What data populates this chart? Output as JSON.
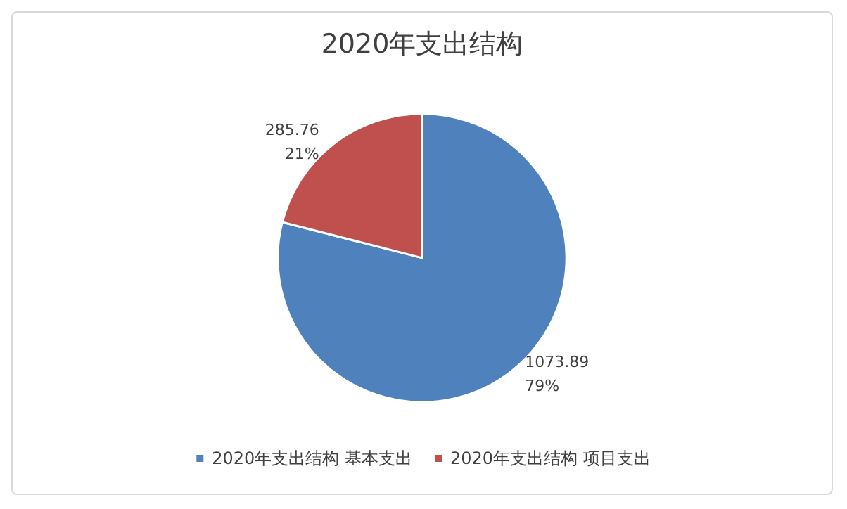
{
  "chart_data": {
    "type": "pie",
    "title": "2020年支出结构",
    "categories": [
      "2020年支出结构 基本支出",
      "2020年支出结构 项目支出"
    ],
    "values": [
      1073.89,
      285.76
    ],
    "colors": [
      "#4f81bd",
      "#c0504d"
    ],
    "value_labels": [
      "1073.89\n79%",
      "285.76\n21%"
    ],
    "legend": "bottom"
  }
}
